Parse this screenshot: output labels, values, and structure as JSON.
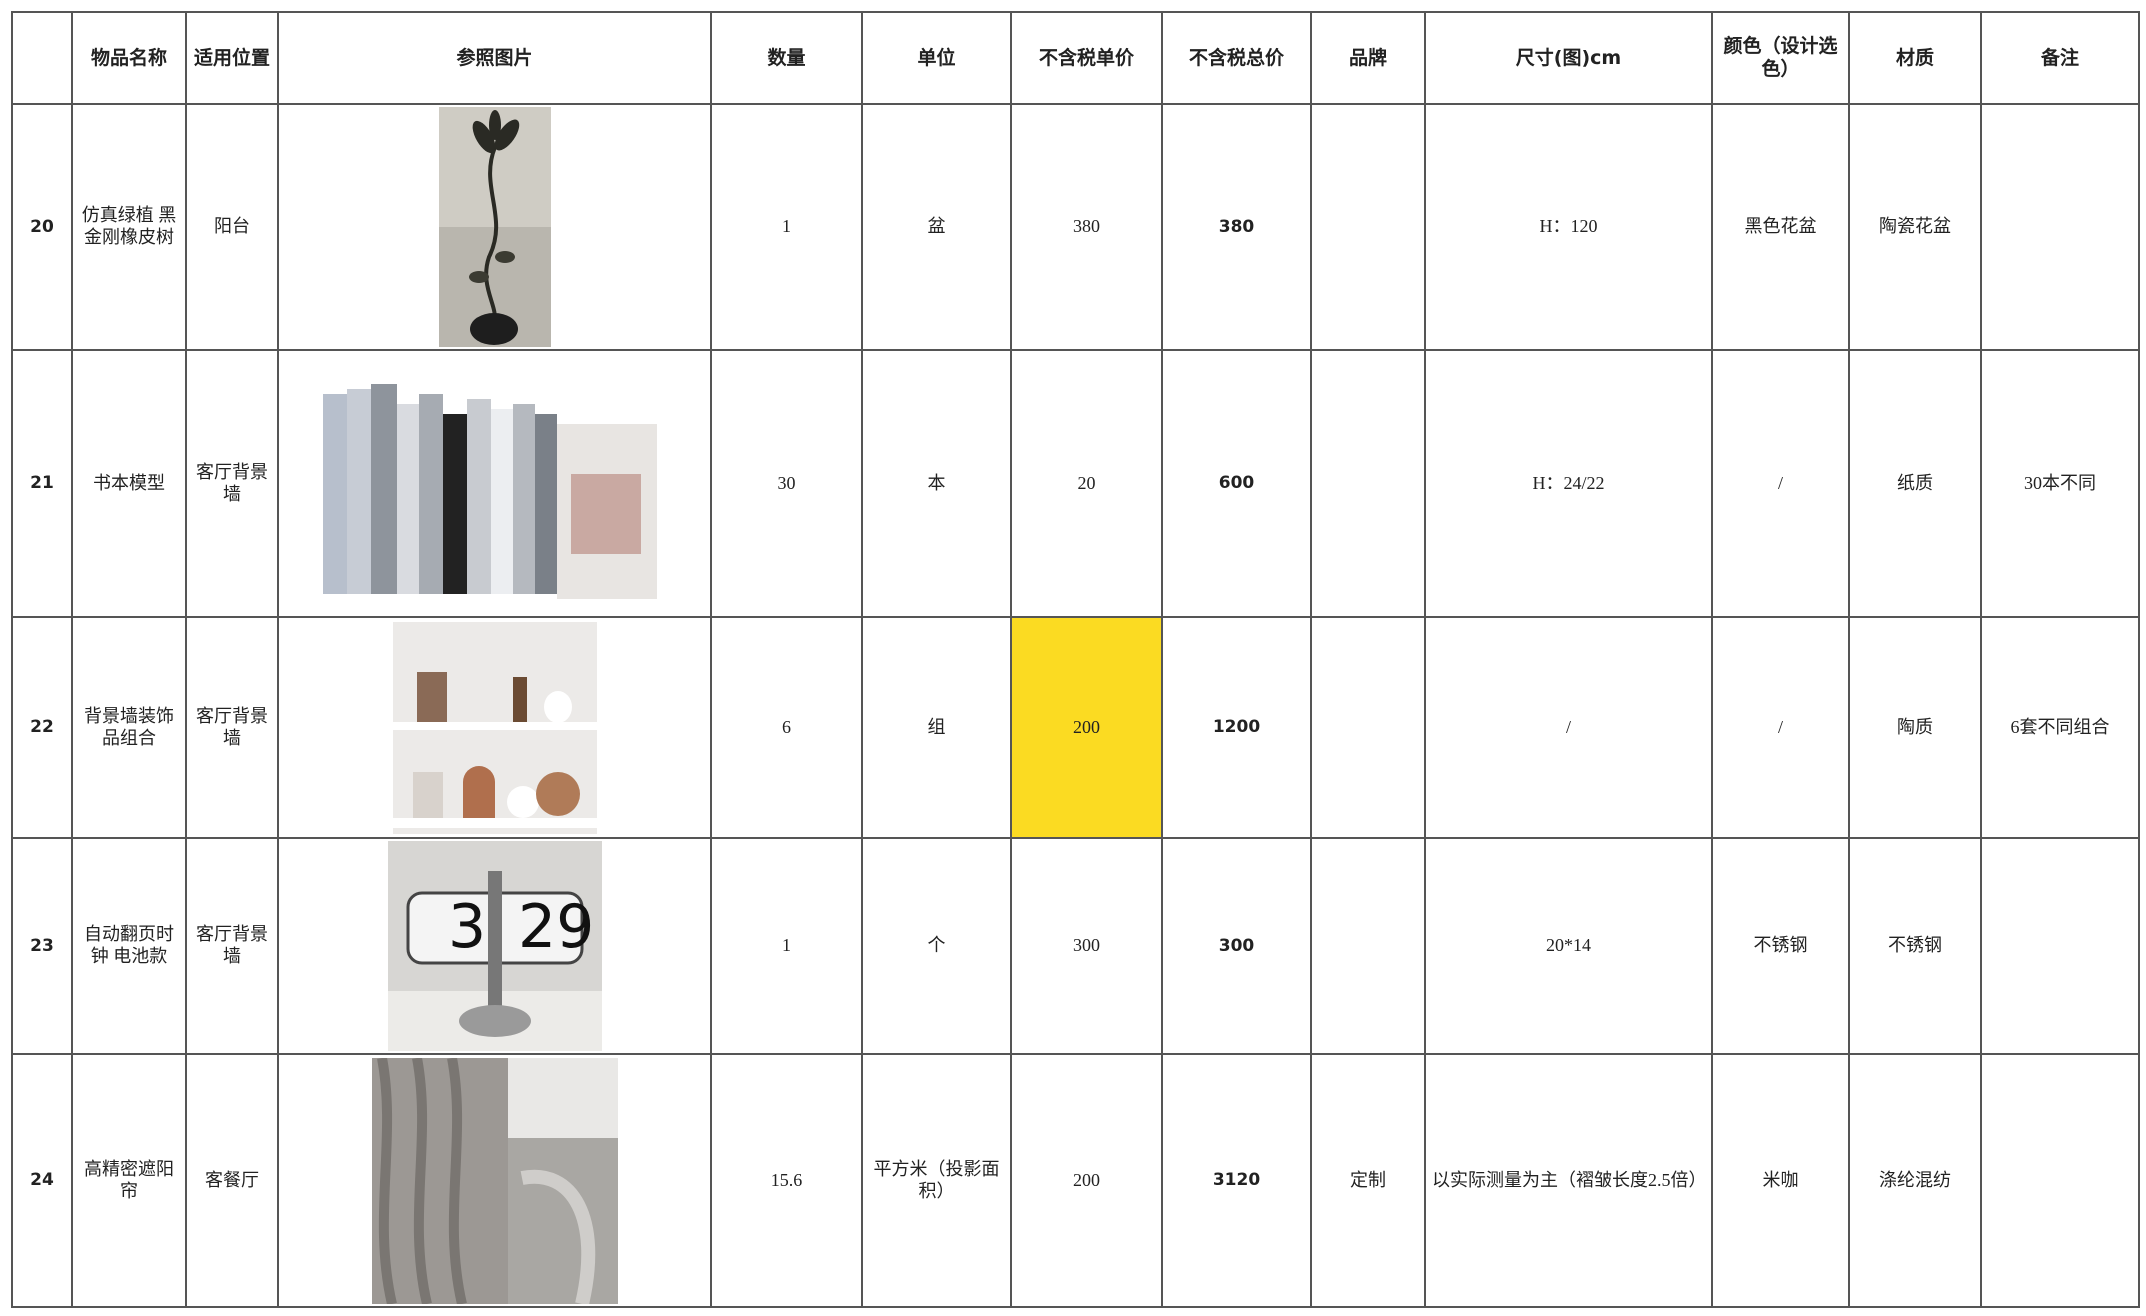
{
  "header": [
    "物品名称",
    "适用位置",
    "参照图片",
    "数量",
    "单位",
    "不含税单价",
    "不含税总价",
    "品牌",
    "尺寸(图)cm",
    "颜色（设计选色）",
    "材质",
    "备注"
  ],
  "rows": [
    {
      "no": "20",
      "name": "仿真绿植 黑金刚橡皮树",
      "location": "阳台",
      "quantity": "1",
      "unit": "盆",
      "unit_price": "380",
      "total_price": "380",
      "size": "H：120",
      "color": "黑色花盆",
      "material": "陶瓷花盆"
    },
    {
      "no": "21",
      "name": "书本模型",
      "location": "客厅背景墙",
      "quantity": "30",
      "unit": "本",
      "unit_price": "20",
      "total_price": "600",
      "size": "H：24/22",
      "color": "/",
      "material": "纸质",
      "note": "30本不同"
    },
    {
      "no": "22",
      "name": "背景墙装饰品组合",
      "location": "客厅背景墙",
      "quantity": "6",
      "unit": "组",
      "unit_price": "200",
      "total_price": "1200",
      "size": "/",
      "color": "/",
      "material": "陶质",
      "note": "6套不同组合"
    },
    {
      "no": "23",
      "name": "自动翻页时钟 电池款",
      "location": "客厅背景墙",
      "quantity": "1",
      "unit": "个",
      "unit_price": "300",
      "total_price": "300",
      "size": "20*14",
      "color": "不锈钢",
      "material": "不锈钢"
    },
    {
      "no": "24",
      "name": "高精密遮阳帘",
      "location": "客餐厅",
      "quantity": "15.6",
      "unit": "平方米（投影面积）",
      "unit_price": "200",
      "total_price": "3120",
      "brand": "定制",
      "size": "以实际测量为主（褶皱长度2.5倍）",
      "color": "米咖",
      "material": "涤纶混纺"
    }
  ]
}
